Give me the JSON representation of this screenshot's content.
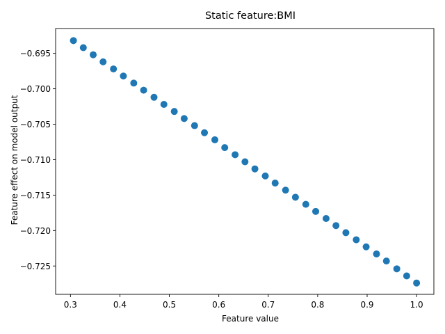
{
  "chart_data": {
    "type": "scatter",
    "title": "Static feature:BMI",
    "xlabel": "Feature value",
    "ylabel": "Feature effect on model output",
    "xlim": [
      0.27,
      1.035
    ],
    "ylim": [
      -0.729,
      -0.6915
    ],
    "xticks": [
      0.3,
      0.4,
      0.5,
      0.6,
      0.7,
      0.8,
      0.9,
      1.0
    ],
    "xtick_labels": [
      "0.3",
      "0.4",
      "0.5",
      "0.6",
      "0.7",
      "0.8",
      "0.9",
      "1.0"
    ],
    "yticks": [
      -0.695,
      -0.7,
      -0.705,
      -0.71,
      -0.715,
      -0.72,
      -0.725
    ],
    "ytick_labels": [
      "−0.695",
      "−0.700",
      "−0.705",
      "−0.710",
      "−0.715",
      "−0.720",
      "−0.725"
    ],
    "grid": false,
    "marker_color": "#1f77b4",
    "points": [
      {
        "x": 0.306,
        "y": -0.6932
      },
      {
        "x": 0.326,
        "y": -0.6942
      },
      {
        "x": 0.346,
        "y": -0.6952
      },
      {
        "x": 0.366,
        "y": -0.6962
      },
      {
        "x": 0.387,
        "y": -0.6972
      },
      {
        "x": 0.407,
        "y": -0.6982
      },
      {
        "x": 0.428,
        "y": -0.6992
      },
      {
        "x": 0.448,
        "y": -0.7002
      },
      {
        "x": 0.469,
        "y": -0.7012
      },
      {
        "x": 0.489,
        "y": -0.7022
      },
      {
        "x": 0.51,
        "y": -0.7032
      },
      {
        "x": 0.53,
        "y": -0.7042
      },
      {
        "x": 0.551,
        "y": -0.7052
      },
      {
        "x": 0.571,
        "y": -0.7062
      },
      {
        "x": 0.592,
        "y": -0.7072
      },
      {
        "x": 0.612,
        "y": -0.7083
      },
      {
        "x": 0.633,
        "y": -0.7093
      },
      {
        "x": 0.653,
        "y": -0.7103
      },
      {
        "x": 0.673,
        "y": -0.7113
      },
      {
        "x": 0.694,
        "y": -0.7123
      },
      {
        "x": 0.714,
        "y": -0.7133
      },
      {
        "x": 0.735,
        "y": -0.7143
      },
      {
        "x": 0.755,
        "y": -0.7153
      },
      {
        "x": 0.776,
        "y": -0.7163
      },
      {
        "x": 0.796,
        "y": -0.7173
      },
      {
        "x": 0.817,
        "y": -0.7183
      },
      {
        "x": 0.837,
        "y": -0.7193
      },
      {
        "x": 0.857,
        "y": -0.7203
      },
      {
        "x": 0.878,
        "y": -0.7213
      },
      {
        "x": 0.898,
        "y": -0.7223
      },
      {
        "x": 0.919,
        "y": -0.7233
      },
      {
        "x": 0.939,
        "y": -0.7243
      },
      {
        "x": 0.96,
        "y": -0.7254
      },
      {
        "x": 0.98,
        "y": -0.7264
      },
      {
        "x": 1.0,
        "y": -0.7274
      }
    ]
  }
}
